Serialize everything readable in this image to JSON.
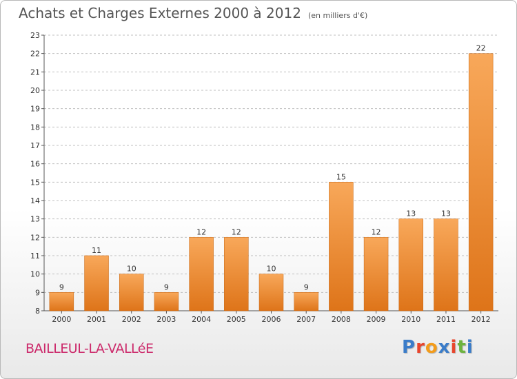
{
  "header": {
    "title": "Achats et Charges Externes 2000 à 2012",
    "subtitle": "(en milliers d'€)"
  },
  "footer": {
    "commune": "BAILLEUL-LA-VALLéE",
    "brand": "Proxiti",
    "brand_colors": [
      "#3a7cc9",
      "#e8452c",
      "#f39c1b",
      "#3a7cc9",
      "#e8452c",
      "#6db33f"
    ]
  },
  "colors": {
    "bar_light": "#f8a85a",
    "bar_dark": "#de7419",
    "grid": "#bfbfbf"
  },
  "chart_data": {
    "type": "bar",
    "categories": [
      "2000",
      "2001",
      "2002",
      "2003",
      "2004",
      "2005",
      "2006",
      "2007",
      "2008",
      "2009",
      "2010",
      "2011",
      "2012"
    ],
    "values": [
      9,
      11,
      10,
      9,
      12,
      12,
      10,
      9,
      15,
      12,
      13,
      13,
      22
    ],
    "title": "Achats et Charges Externes 2000 à 2012",
    "xlabel": "",
    "ylabel": "",
    "ylim": [
      8,
      23
    ],
    "yticks": [
      8,
      9,
      10,
      11,
      12,
      13,
      14,
      15,
      16,
      17,
      18,
      19,
      20,
      21,
      22,
      23
    ],
    "grid": true,
    "data_labels": true
  }
}
